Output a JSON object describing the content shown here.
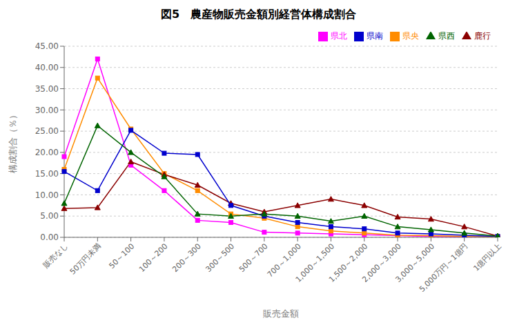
{
  "chart_data": {
    "type": "line",
    "title": "図5　農産物販売金額別経営体構成割合",
    "ylabel": "構成割合（％）",
    "xlabel": "販売金額",
    "categories": [
      "販売なし",
      "50万円未満",
      "50～100",
      "100～200",
      "200～300",
      "300～500",
      "500～700",
      "700～1,000",
      "1,000～1,500",
      "1,500～2,000",
      "2,000～3,000",
      "3,000～5,000",
      "5,000万円～1億円",
      "1億円以上"
    ],
    "ylim": [
      0,
      45
    ],
    "yticks": [
      {
        "value": 0,
        "label": "0.00"
      },
      {
        "value": 5,
        "label": "5.00"
      },
      {
        "value": 10,
        "label": "10.00"
      },
      {
        "value": 15,
        "label": "15.00"
      },
      {
        "value": 20,
        "label": "20.00"
      },
      {
        "value": 25,
        "label": "25.00"
      },
      {
        "value": 30,
        "label": "30.00"
      },
      {
        "value": 35,
        "label": "35.00"
      },
      {
        "value": 40,
        "label": "40.00"
      },
      {
        "value": 45,
        "label": "45.00"
      }
    ],
    "grid": true,
    "legend": "top-right",
    "series": [
      {
        "name": "県北",
        "color": "#FF00FF",
        "marker": "square",
        "values": [
          19.0,
          42.0,
          17.0,
          11.0,
          4.0,
          3.5,
          1.2,
          1.0,
          0.8,
          0.6,
          0.4,
          0.2,
          0.1,
          0.05
        ]
      },
      {
        "name": "県央",
        "color": "#FF8C00",
        "marker": "square",
        "values": [
          16.0,
          37.5,
          25.5,
          15.0,
          11.0,
          5.5,
          4.5,
          2.5,
          1.5,
          1.0,
          0.5,
          0.4,
          0.2,
          0.1
        ]
      },
      {
        "name": "鹿行",
        "color": "#8B0000",
        "marker": "triangle",
        "values": [
          6.8,
          7.0,
          17.8,
          14.8,
          12.3,
          8.0,
          6.0,
          7.5,
          9.0,
          7.5,
          4.8,
          4.3,
          2.5,
          0.3
        ]
      },
      {
        "name": "県南",
        "color": "#0000CD",
        "marker": "square",
        "values": [
          15.5,
          11.0,
          25.2,
          19.8,
          19.5,
          7.5,
          5.0,
          3.5,
          2.5,
          2.0,
          1.0,
          0.8,
          0.5,
          0.2
        ]
      },
      {
        "name": "県西",
        "color": "#006400",
        "marker": "triangle",
        "values": [
          8.0,
          26.3,
          20.0,
          14.3,
          5.5,
          5.0,
          5.5,
          5.0,
          3.8,
          5.0,
          2.5,
          1.8,
          1.0,
          0.3
        ]
      }
    ]
  }
}
